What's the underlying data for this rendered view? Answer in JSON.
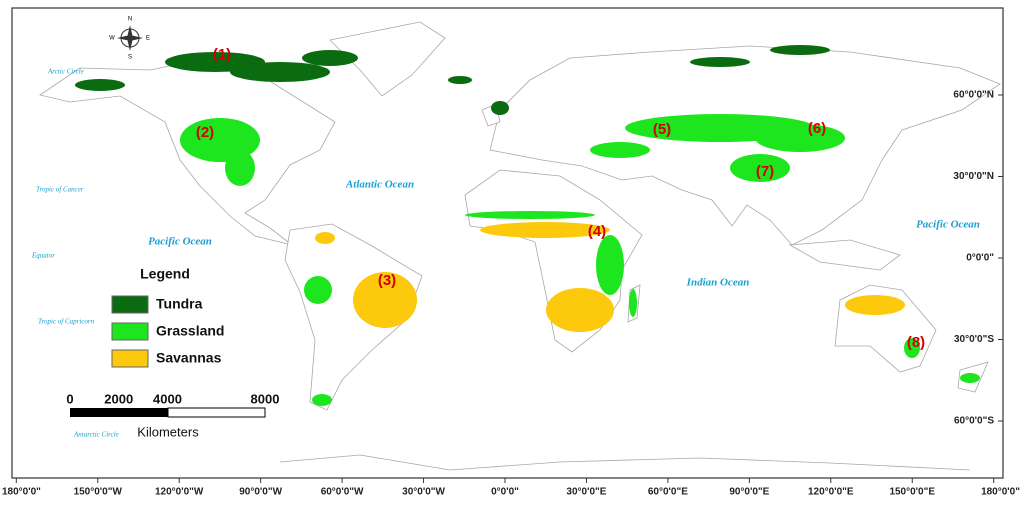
{
  "map": {
    "compass": {
      "n": "N",
      "s": "S",
      "w": "W",
      "e": "E"
    },
    "reference_lines": [
      "Arctic Circle",
      "Tropic of Cancer",
      "Equator",
      "Tropic of Capricorn",
      "Antarctic Circle"
    ],
    "oceans": [
      "Atlantic Ocean",
      "Pacific Ocean",
      "Pacific Ocean",
      "Indian Ocean"
    ],
    "regions": [
      "(1)",
      "(2)",
      "(3)",
      "(4)",
      "(5)",
      "(6)",
      "(7)",
      "(8)"
    ],
    "legend": {
      "title": "Legend",
      "items": [
        {
          "label": "Tundra",
          "color": "#0b6b10"
        },
        {
          "label": "Grassland",
          "color": "#1ee61e"
        },
        {
          "label": "Savannas",
          "color": "#fcc90c"
        }
      ]
    },
    "scale_bar": {
      "ticks": [
        0,
        2000,
        4000,
        8000
      ],
      "unit": "Kilometers"
    },
    "lon_ticks": [
      {
        "value": -180,
        "label": "180°0'0\""
      },
      {
        "value": -150,
        "label": "150°0'0\"W"
      },
      {
        "value": -120,
        "label": "120°0'0\"W"
      },
      {
        "value": -90,
        "label": "90°0'0\"W"
      },
      {
        "value": -60,
        "label": "60°0'0\"W"
      },
      {
        "value": -30,
        "label": "30°0'0\"W"
      },
      {
        "value": 0,
        "label": "0°0'0\""
      },
      {
        "value": 30,
        "label": "30°0'0\"E"
      },
      {
        "value": 60,
        "label": "60°0'0\"E"
      },
      {
        "value": 90,
        "label": "90°0'0\"E"
      },
      {
        "value": 120,
        "label": "120°0'0\"E"
      },
      {
        "value": 150,
        "label": "150°0'0\"E"
      },
      {
        "value": 180,
        "label": "180°0'0\""
      }
    ],
    "lat_ticks": [
      {
        "value": 60,
        "label": "60°0'0\"N"
      },
      {
        "value": 30,
        "label": "30°0'0\"N"
      },
      {
        "value": 0,
        "label": "0°0'0\""
      },
      {
        "value": -30,
        "label": "30°0'0\"S"
      },
      {
        "value": -60,
        "label": "60°0'0\"S"
      }
    ]
  }
}
